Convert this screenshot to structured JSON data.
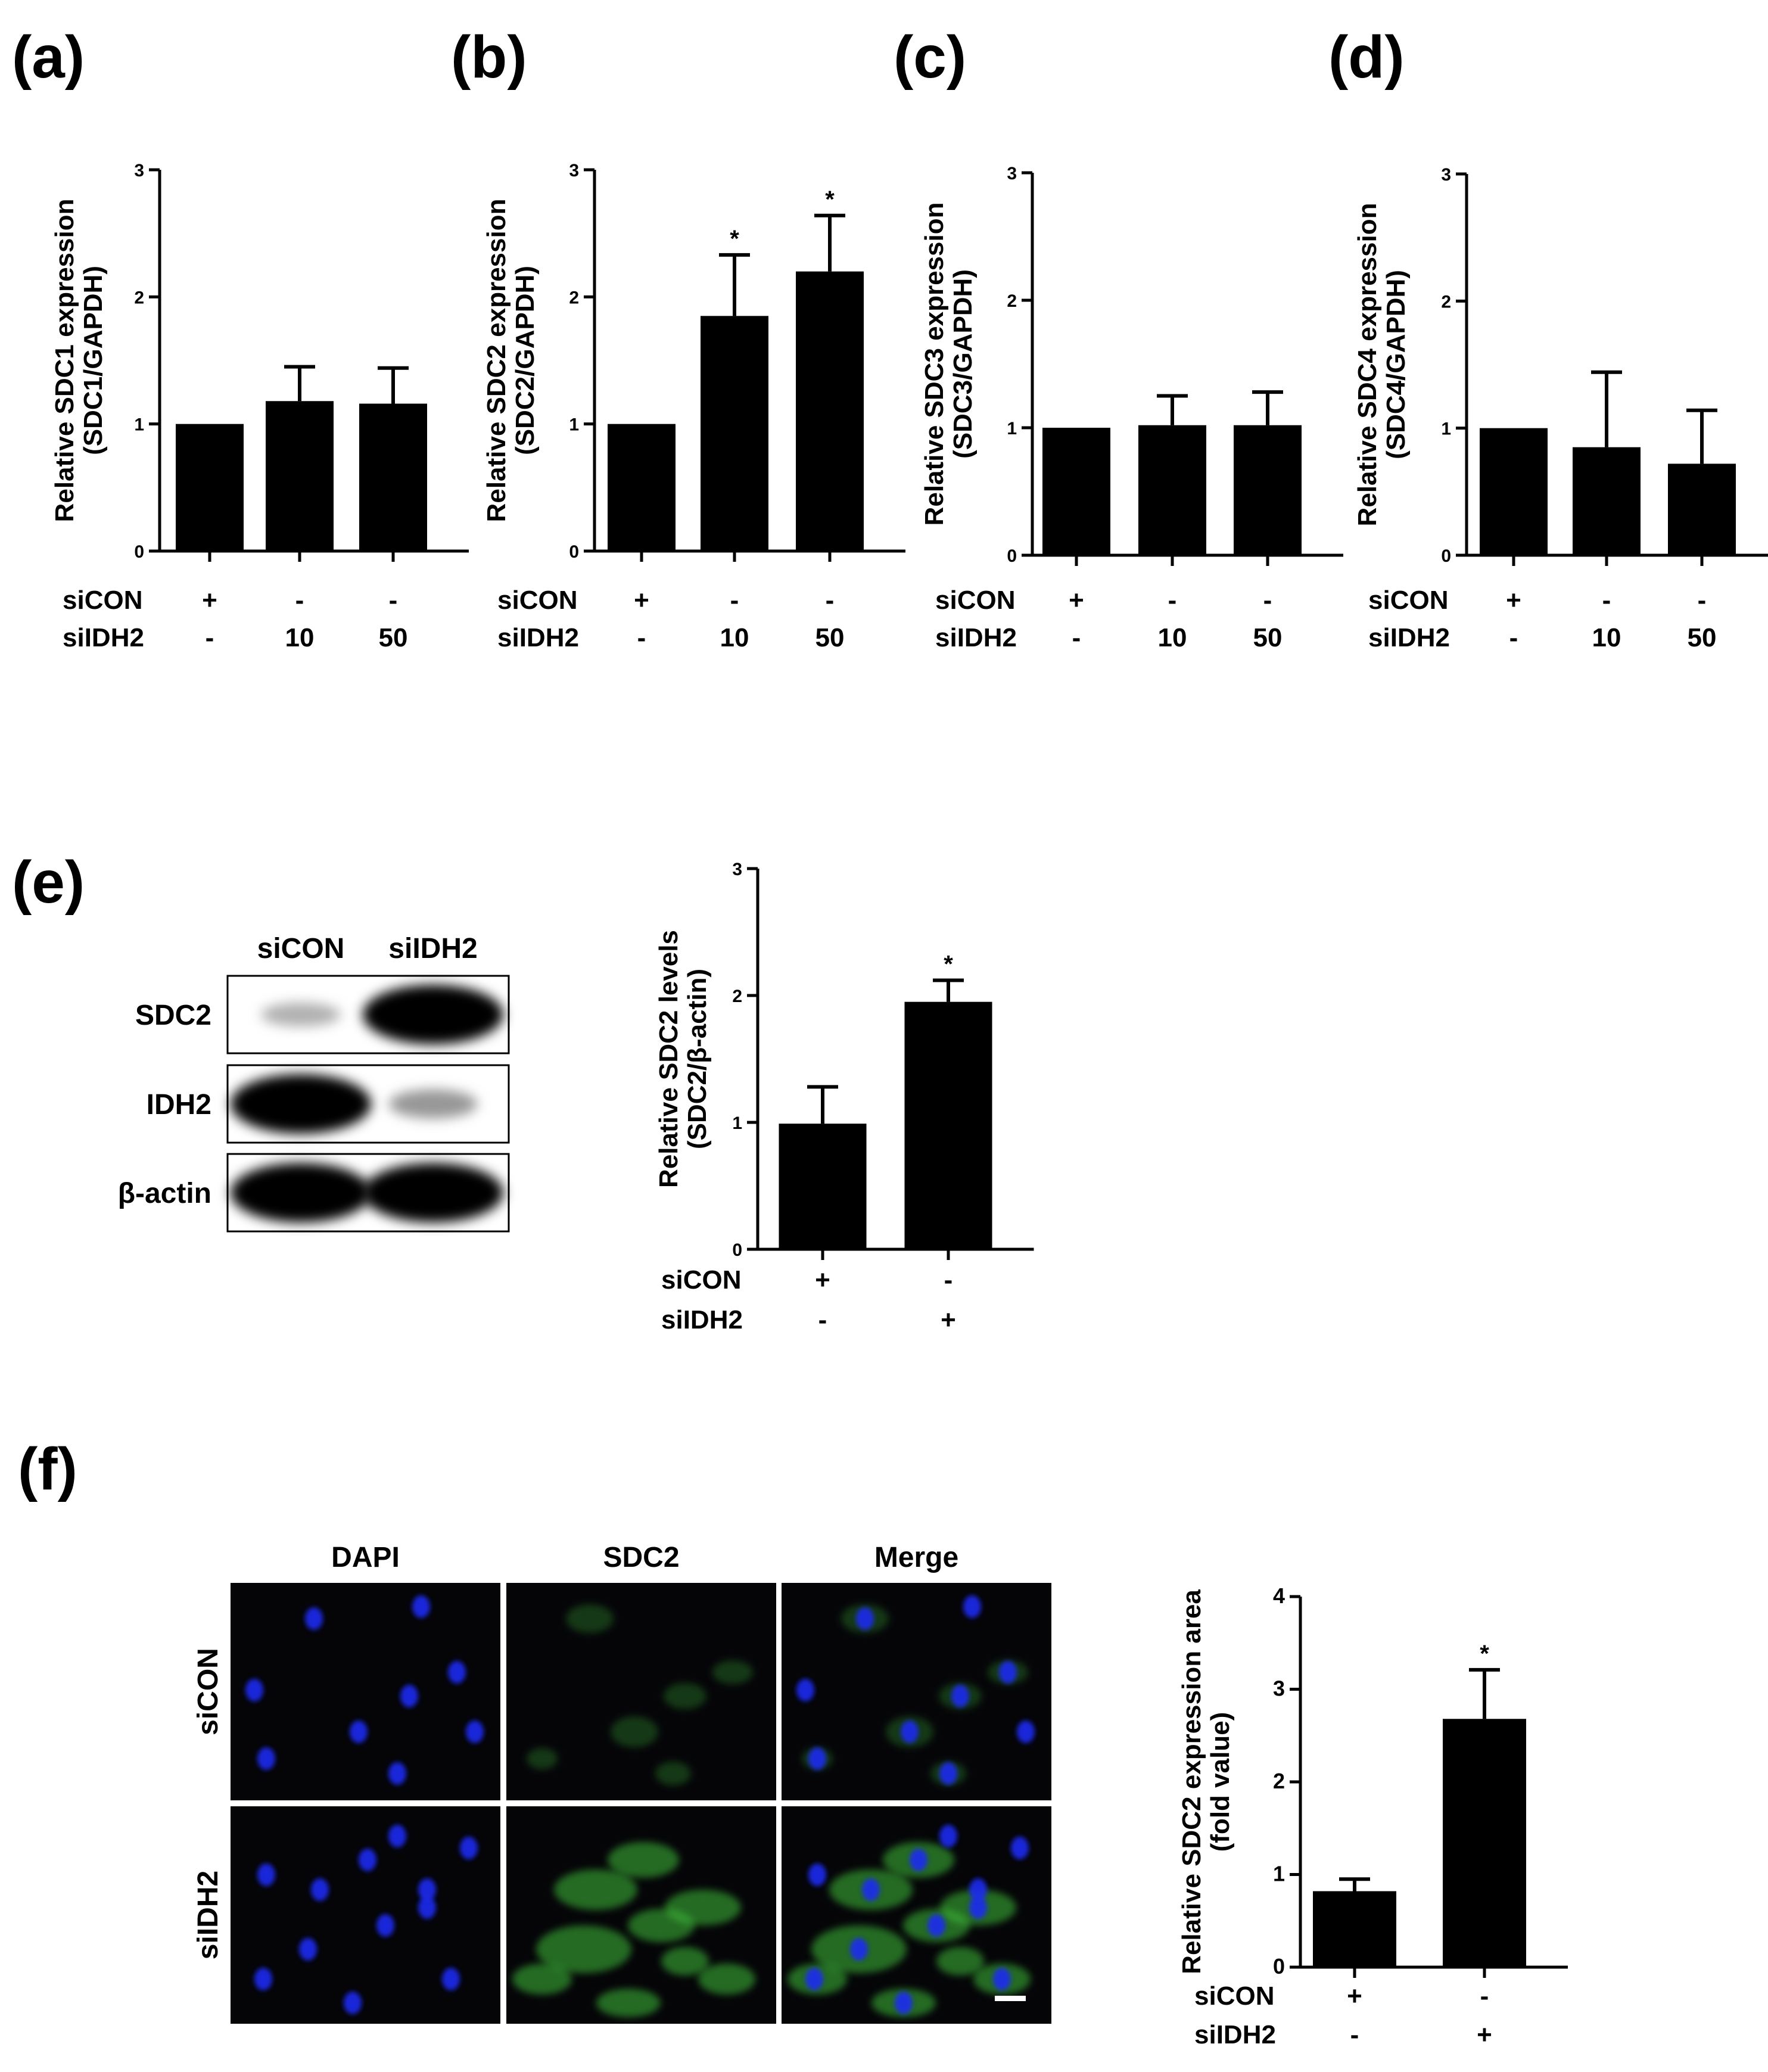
{
  "panels": [
    {
      "id": "a",
      "label": "(a)"
    },
    {
      "id": "b",
      "label": "(b)"
    },
    {
      "id": "c",
      "label": "(c)"
    },
    {
      "id": "d",
      "label": "(d)"
    },
    {
      "id": "e",
      "label": "(e)"
    },
    {
      "id": "f",
      "label": "(f)"
    }
  ],
  "chart_data": [
    {
      "panel": "a",
      "type": "bar",
      "ylabel": [
        "Relative SDC1 expression",
        "(SDC1/GAPDH)"
      ],
      "ylim": [
        0,
        3
      ],
      "yticks": [
        0,
        1,
        2,
        3
      ],
      "conditions": [
        {
          "name": "siCON",
          "values": [
            "+",
            "-",
            "-"
          ]
        },
        {
          "name": "siIDH2",
          "values": [
            "-",
            "10",
            "50"
          ]
        }
      ],
      "values": [
        1.0,
        1.18,
        1.16
      ],
      "errors": [
        0,
        0.27,
        0.28
      ],
      "significance": [
        "",
        "",
        ""
      ]
    },
    {
      "panel": "b",
      "type": "bar",
      "ylabel": [
        "Relative SDC2 expression",
        "(SDC2/GAPDH)"
      ],
      "ylim": [
        0,
        3
      ],
      "yticks": [
        0,
        1,
        2,
        3
      ],
      "conditions": [
        {
          "name": "siCON",
          "values": [
            "+",
            "-",
            "-"
          ]
        },
        {
          "name": "siIDH2",
          "values": [
            "-",
            "10",
            "50"
          ]
        }
      ],
      "values": [
        1.0,
        1.85,
        2.2
      ],
      "errors": [
        0,
        0.48,
        0.44
      ],
      "significance": [
        "",
        "*",
        "*"
      ]
    },
    {
      "panel": "c",
      "type": "bar",
      "ylabel": [
        "Relative SDC3 expression",
        "(SDC3/GAPDH)"
      ],
      "ylim": [
        0,
        3
      ],
      "yticks": [
        0,
        1,
        2,
        3
      ],
      "conditions": [
        {
          "name": "siCON",
          "values": [
            "+",
            "-",
            "-"
          ]
        },
        {
          "name": "siIDH2",
          "values": [
            "-",
            "10",
            "50"
          ]
        }
      ],
      "values": [
        1.0,
        1.02,
        1.02
      ],
      "errors": [
        0,
        0.23,
        0.26
      ],
      "significance": [
        "",
        "",
        ""
      ]
    },
    {
      "panel": "d",
      "type": "bar",
      "ylabel": [
        "Relative SDC4 expression",
        "(SDC4/GAPDH)"
      ],
      "ylim": [
        0,
        3
      ],
      "yticks": [
        0,
        1,
        2,
        3
      ],
      "conditions": [
        {
          "name": "siCON",
          "values": [
            "+",
            "-",
            "-"
          ]
        },
        {
          "name": "siIDH2",
          "values": [
            "-",
            "10",
            "50"
          ]
        }
      ],
      "values": [
        1.0,
        0.85,
        0.72
      ],
      "errors": [
        0,
        0.59,
        0.42
      ],
      "significance": [
        "",
        "",
        ""
      ]
    },
    {
      "panel": "e",
      "type": "bar",
      "ylabel": [
        "Relative SDC2 levels",
        "(SDC2/β-actin)"
      ],
      "ylim": [
        0,
        3
      ],
      "yticks": [
        0,
        1,
        2,
        3
      ],
      "conditions": [
        {
          "name": "siCON",
          "values": [
            "+",
            "-"
          ]
        },
        {
          "name": "siIDH2",
          "values": [
            "-",
            "+"
          ]
        }
      ],
      "values": [
        0.99,
        1.95
      ],
      "errors": [
        0.29,
        0.17
      ],
      "significance": [
        "",
        "*"
      ]
    },
    {
      "panel": "f",
      "type": "bar",
      "ylabel": [
        "Relative SDC2 expression area",
        "(fold value)"
      ],
      "ylim": [
        0,
        4
      ],
      "yticks": [
        0,
        1,
        2,
        3,
        4
      ],
      "conditions": [
        {
          "name": "siCON",
          "values": [
            "+",
            "-"
          ]
        },
        {
          "name": "siIDH2",
          "values": [
            "-",
            "+"
          ]
        }
      ],
      "values": [
        0.82,
        2.68
      ],
      "errors": [
        0.13,
        0.53
      ],
      "significance": [
        "",
        "*"
      ]
    }
  ],
  "blot": {
    "columns": [
      "siCON",
      "siIDH2"
    ],
    "rows": [
      {
        "label": "SDC2",
        "intensity": [
          0.12,
          1.0
        ]
      },
      {
        "label": "IDH2",
        "intensity": [
          1.0,
          0.25
        ]
      },
      {
        "label": "β-actin",
        "intensity": [
          1.0,
          1.0
        ]
      }
    ]
  },
  "micrographs": {
    "columns": [
      "DAPI",
      "SDC2",
      "Merge"
    ],
    "rows": [
      "siCON",
      "siIDH2"
    ],
    "colors": {
      "dapi": "#1a2cf0",
      "sdc2": "#3fbf3a",
      "background": "#050508"
    }
  }
}
